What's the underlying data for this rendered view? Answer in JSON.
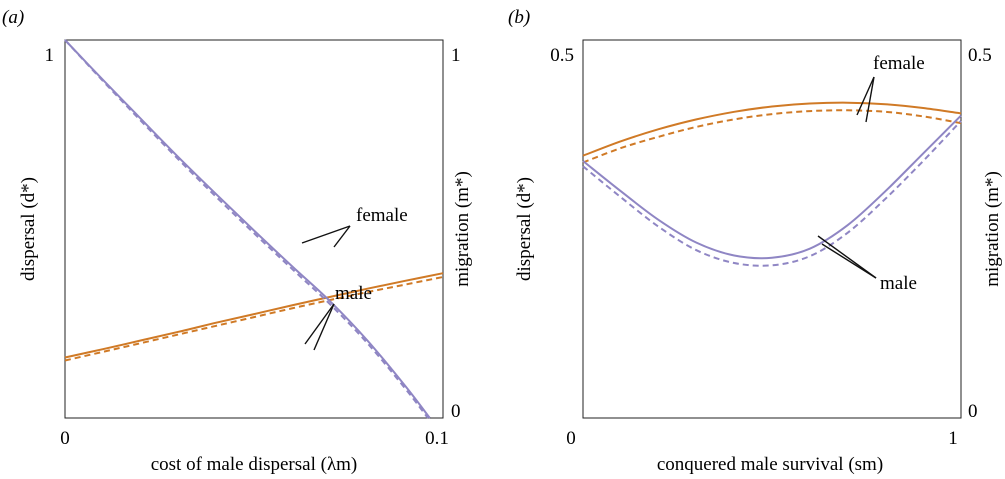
{
  "colors": {
    "female": "#d07a26",
    "male": "#8f86c4",
    "pointer": "#111111",
    "frame": "#222222"
  },
  "chart_data": [
    {
      "type": "line",
      "panel_label": "(a)",
      "xlabel": "cost of male dispersal (λm)",
      "ylabel_left": "dispersal (d*)",
      "ylabel_right": "migration (m*)",
      "xlim": [
        0,
        0.1
      ],
      "ylim": [
        0,
        1
      ],
      "x_ticks": [
        "0",
        "0.1"
      ],
      "y_ticks_left": [
        "1"
      ],
      "y_ticks_right": [
        "0",
        "1"
      ],
      "series": [
        {
          "name": "female",
          "style": "solid",
          "color": "female",
          "x": [
            0,
            0.01,
            0.02,
            0.03,
            0.04,
            0.05,
            0.06,
            0.07,
            0.08,
            0.09,
            0.1
          ],
          "y": [
            0.16,
            0.182,
            0.205,
            0.228,
            0.252,
            0.275,
            0.298,
            0.32,
            0.342,
            0.363,
            0.383
          ]
        },
        {
          "name": "female",
          "style": "dashed",
          "color": "female",
          "x": [
            0,
            0.01,
            0.02,
            0.03,
            0.04,
            0.05,
            0.06,
            0.07,
            0.08,
            0.09,
            0.1
          ],
          "y": [
            0.152,
            0.175,
            0.198,
            0.221,
            0.244,
            0.267,
            0.29,
            0.312,
            0.333,
            0.353,
            0.373
          ]
        },
        {
          "name": "male",
          "style": "solid",
          "color": "male",
          "x": [
            0,
            0.01,
            0.02,
            0.03,
            0.04,
            0.05,
            0.06,
            0.07,
            0.08,
            0.09,
            0.0965
          ],
          "y": [
            1.0,
            0.895,
            0.792,
            0.69,
            0.592,
            0.496,
            0.402,
            0.31,
            0.205,
            0.085,
            0.0
          ]
        },
        {
          "name": "male",
          "style": "dashed",
          "color": "male",
          "x": [
            0,
            0.01,
            0.02,
            0.03,
            0.04,
            0.05,
            0.06,
            0.07,
            0.08,
            0.09,
            0.096
          ],
          "y": [
            1.0,
            0.892,
            0.787,
            0.684,
            0.585,
            0.489,
            0.395,
            0.302,
            0.198,
            0.078,
            0.0
          ]
        }
      ],
      "labels": [
        {
          "text": "female",
          "series": "female"
        },
        {
          "text": "male",
          "series": "male"
        }
      ]
    },
    {
      "type": "line",
      "panel_label": "(b)",
      "xlabel": "conquered male survival (sm)",
      "ylabel_left": "dispersal (d*)",
      "ylabel_right": "migration (m*)",
      "xlim": [
        0,
        1
      ],
      "ylim": [
        0,
        0.5
      ],
      "x_ticks": [
        "0",
        "1"
      ],
      "y_ticks_left": [
        "0.5"
      ],
      "y_ticks_right": [
        "0",
        "0.5"
      ],
      "series": [
        {
          "name": "female",
          "style": "solid",
          "color": "female",
          "x": [
            0,
            0.1,
            0.2,
            0.3,
            0.4,
            0.5,
            0.6,
            0.7,
            0.8,
            0.9,
            1.0
          ],
          "y": [
            0.347,
            0.366,
            0.382,
            0.395,
            0.405,
            0.412,
            0.416,
            0.417,
            0.415,
            0.41,
            0.403
          ]
        },
        {
          "name": "female",
          "style": "dashed",
          "color": "female",
          "x": [
            0,
            0.1,
            0.2,
            0.3,
            0.4,
            0.5,
            0.6,
            0.7,
            0.8,
            0.9,
            1.0
          ],
          "y": [
            0.338,
            0.357,
            0.372,
            0.385,
            0.395,
            0.402,
            0.406,
            0.407,
            0.405,
            0.399,
            0.39
          ]
        },
        {
          "name": "male",
          "style": "solid",
          "color": "male",
          "x": [
            0,
            0.1,
            0.2,
            0.3,
            0.4,
            0.5,
            0.6,
            0.7,
            0.8,
            0.9,
            1.0
          ],
          "y": [
            0.34,
            0.3,
            0.262,
            0.232,
            0.215,
            0.212,
            0.224,
            0.255,
            0.3,
            0.35,
            0.4
          ]
        },
        {
          "name": "male",
          "style": "dashed",
          "color": "male",
          "x": [
            0,
            0.1,
            0.2,
            0.3,
            0.4,
            0.5,
            0.6,
            0.7,
            0.8,
            0.9,
            1.0
          ],
          "y": [
            0.333,
            0.292,
            0.253,
            0.222,
            0.205,
            0.202,
            0.214,
            0.245,
            0.29,
            0.34,
            0.393
          ]
        }
      ],
      "labels": [
        {
          "text": "female",
          "series": "female"
        },
        {
          "text": "male",
          "series": "male"
        }
      ]
    }
  ]
}
